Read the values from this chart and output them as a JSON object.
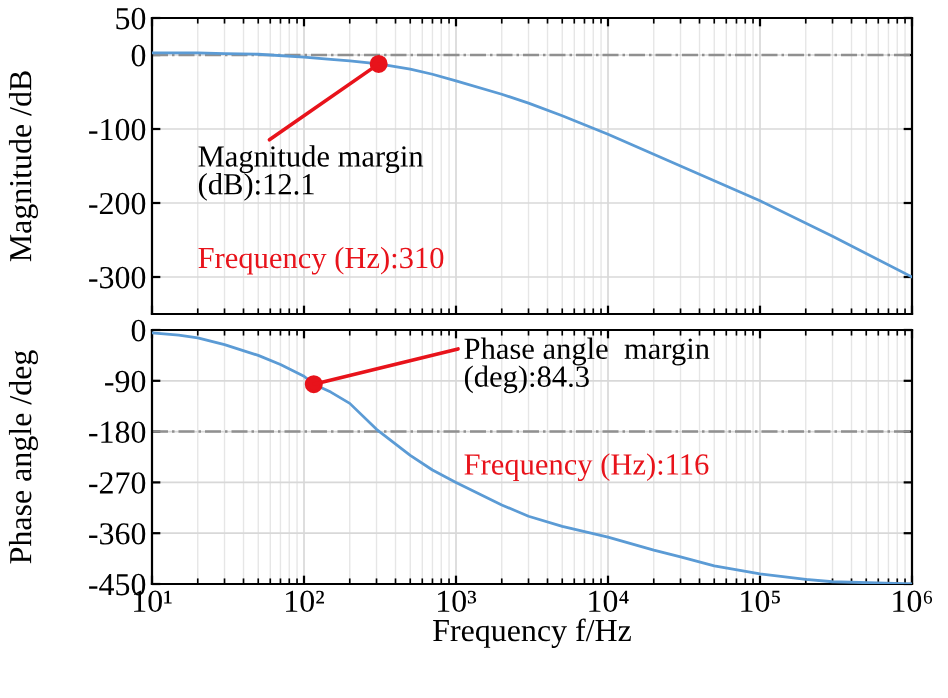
{
  "chart_data": [
    {
      "type": "line",
      "ylabel": "Magnitude /dB",
      "log": "x",
      "grid": true,
      "tick_labels": "y",
      "xlim": [
        10,
        1000000
      ],
      "ylim": [
        -350,
        50
      ],
      "xticks": [
        {
          "value": 10,
          "label": null
        },
        {
          "value": 100,
          "label": null
        },
        {
          "value": 1000,
          "label": null
        },
        {
          "value": 10000,
          "label": null
        },
        {
          "value": 100000,
          "label": null
        },
        {
          "value": 1000000,
          "label": null
        }
      ],
      "yticks": [
        50,
        0,
        -100,
        -200,
        -300
      ],
      "series": [
        {
          "color": "#5b9bd5",
          "x": [
            10,
            20,
            30,
            50,
            100,
            150,
            200,
            310,
            500,
            700,
            1000,
            2000,
            3000,
            5000,
            10000,
            30000,
            100000,
            300000,
            1000000
          ],
          "values": [
            3,
            3,
            2,
            1,
            -3,
            -6,
            -8,
            -12,
            -19,
            -26,
            -35,
            -53,
            -65,
            -82,
            -107,
            -150,
            -197,
            -245,
            -300
          ]
        },
        {
          "type": "scatter",
          "color": "#e8131b",
          "x": [
            310
          ],
          "values": [
            -12
          ]
        }
      ],
      "ref_lines": [
        {
          "axis": "y",
          "value": 0,
          "color": "#909090",
          "line_style": "dashdot"
        }
      ],
      "annotations": [
        {
          "text": "Magnitude margin\n(dB):12.1",
          "x": 310,
          "y": -12
        },
        "Frequency (Hz):310"
      ]
    },
    {
      "type": "line",
      "xlabel": "Frequency f/Hz",
      "ylabel": "Phase angle /deg",
      "log": "x",
      "grid": true,
      "xlim": [
        10,
        1000000
      ],
      "ylim": [
        -450,
        0
      ],
      "xticks": [
        {
          "value": 10,
          "label": "10¹"
        },
        {
          "value": 100,
          "label": "10²"
        },
        {
          "value": 1000,
          "label": "10³"
        },
        {
          "value": 10000,
          "label": "10⁴"
        },
        {
          "value": 100000,
          "label": "10⁵"
        },
        {
          "value": 1000000,
          "label": "10⁶"
        }
      ],
      "yticks": [
        0,
        -90,
        -180,
        -270,
        -360,
        -450
      ],
      "series": [
        {
          "color": "#5b9bd5",
          "x": [
            10,
            15,
            20,
            30,
            50,
            70,
            100,
            116,
            150,
            200,
            300,
            500,
            700,
            1000,
            2000,
            3000,
            5000,
            10000,
            20000,
            30000,
            50000,
            100000,
            200000,
            300000,
            1000000
          ],
          "values": [
            -5,
            -9,
            -14,
            -26,
            -45,
            -61,
            -82,
            -96,
            -110,
            -130,
            -176,
            -222,
            -248,
            -270,
            -310,
            -330,
            -348,
            -367,
            -390,
            -402,
            -418,
            -432,
            -442,
            -446,
            -450
          ]
        },
        {
          "type": "scatter",
          "color": "#e8131b",
          "x": [
            116
          ],
          "values": [
            -96
          ]
        }
      ],
      "ref_lines": [
        {
          "axis": "y",
          "value": -180,
          "color": "#909090",
          "line_style": "dashdot"
        }
      ],
      "annotations": [
        {
          "text": "Phase angle  margin\n(deg):84.3",
          "x": 116,
          "y": -96
        },
        "Frequency (Hz):116"
      ]
    }
  ]
}
